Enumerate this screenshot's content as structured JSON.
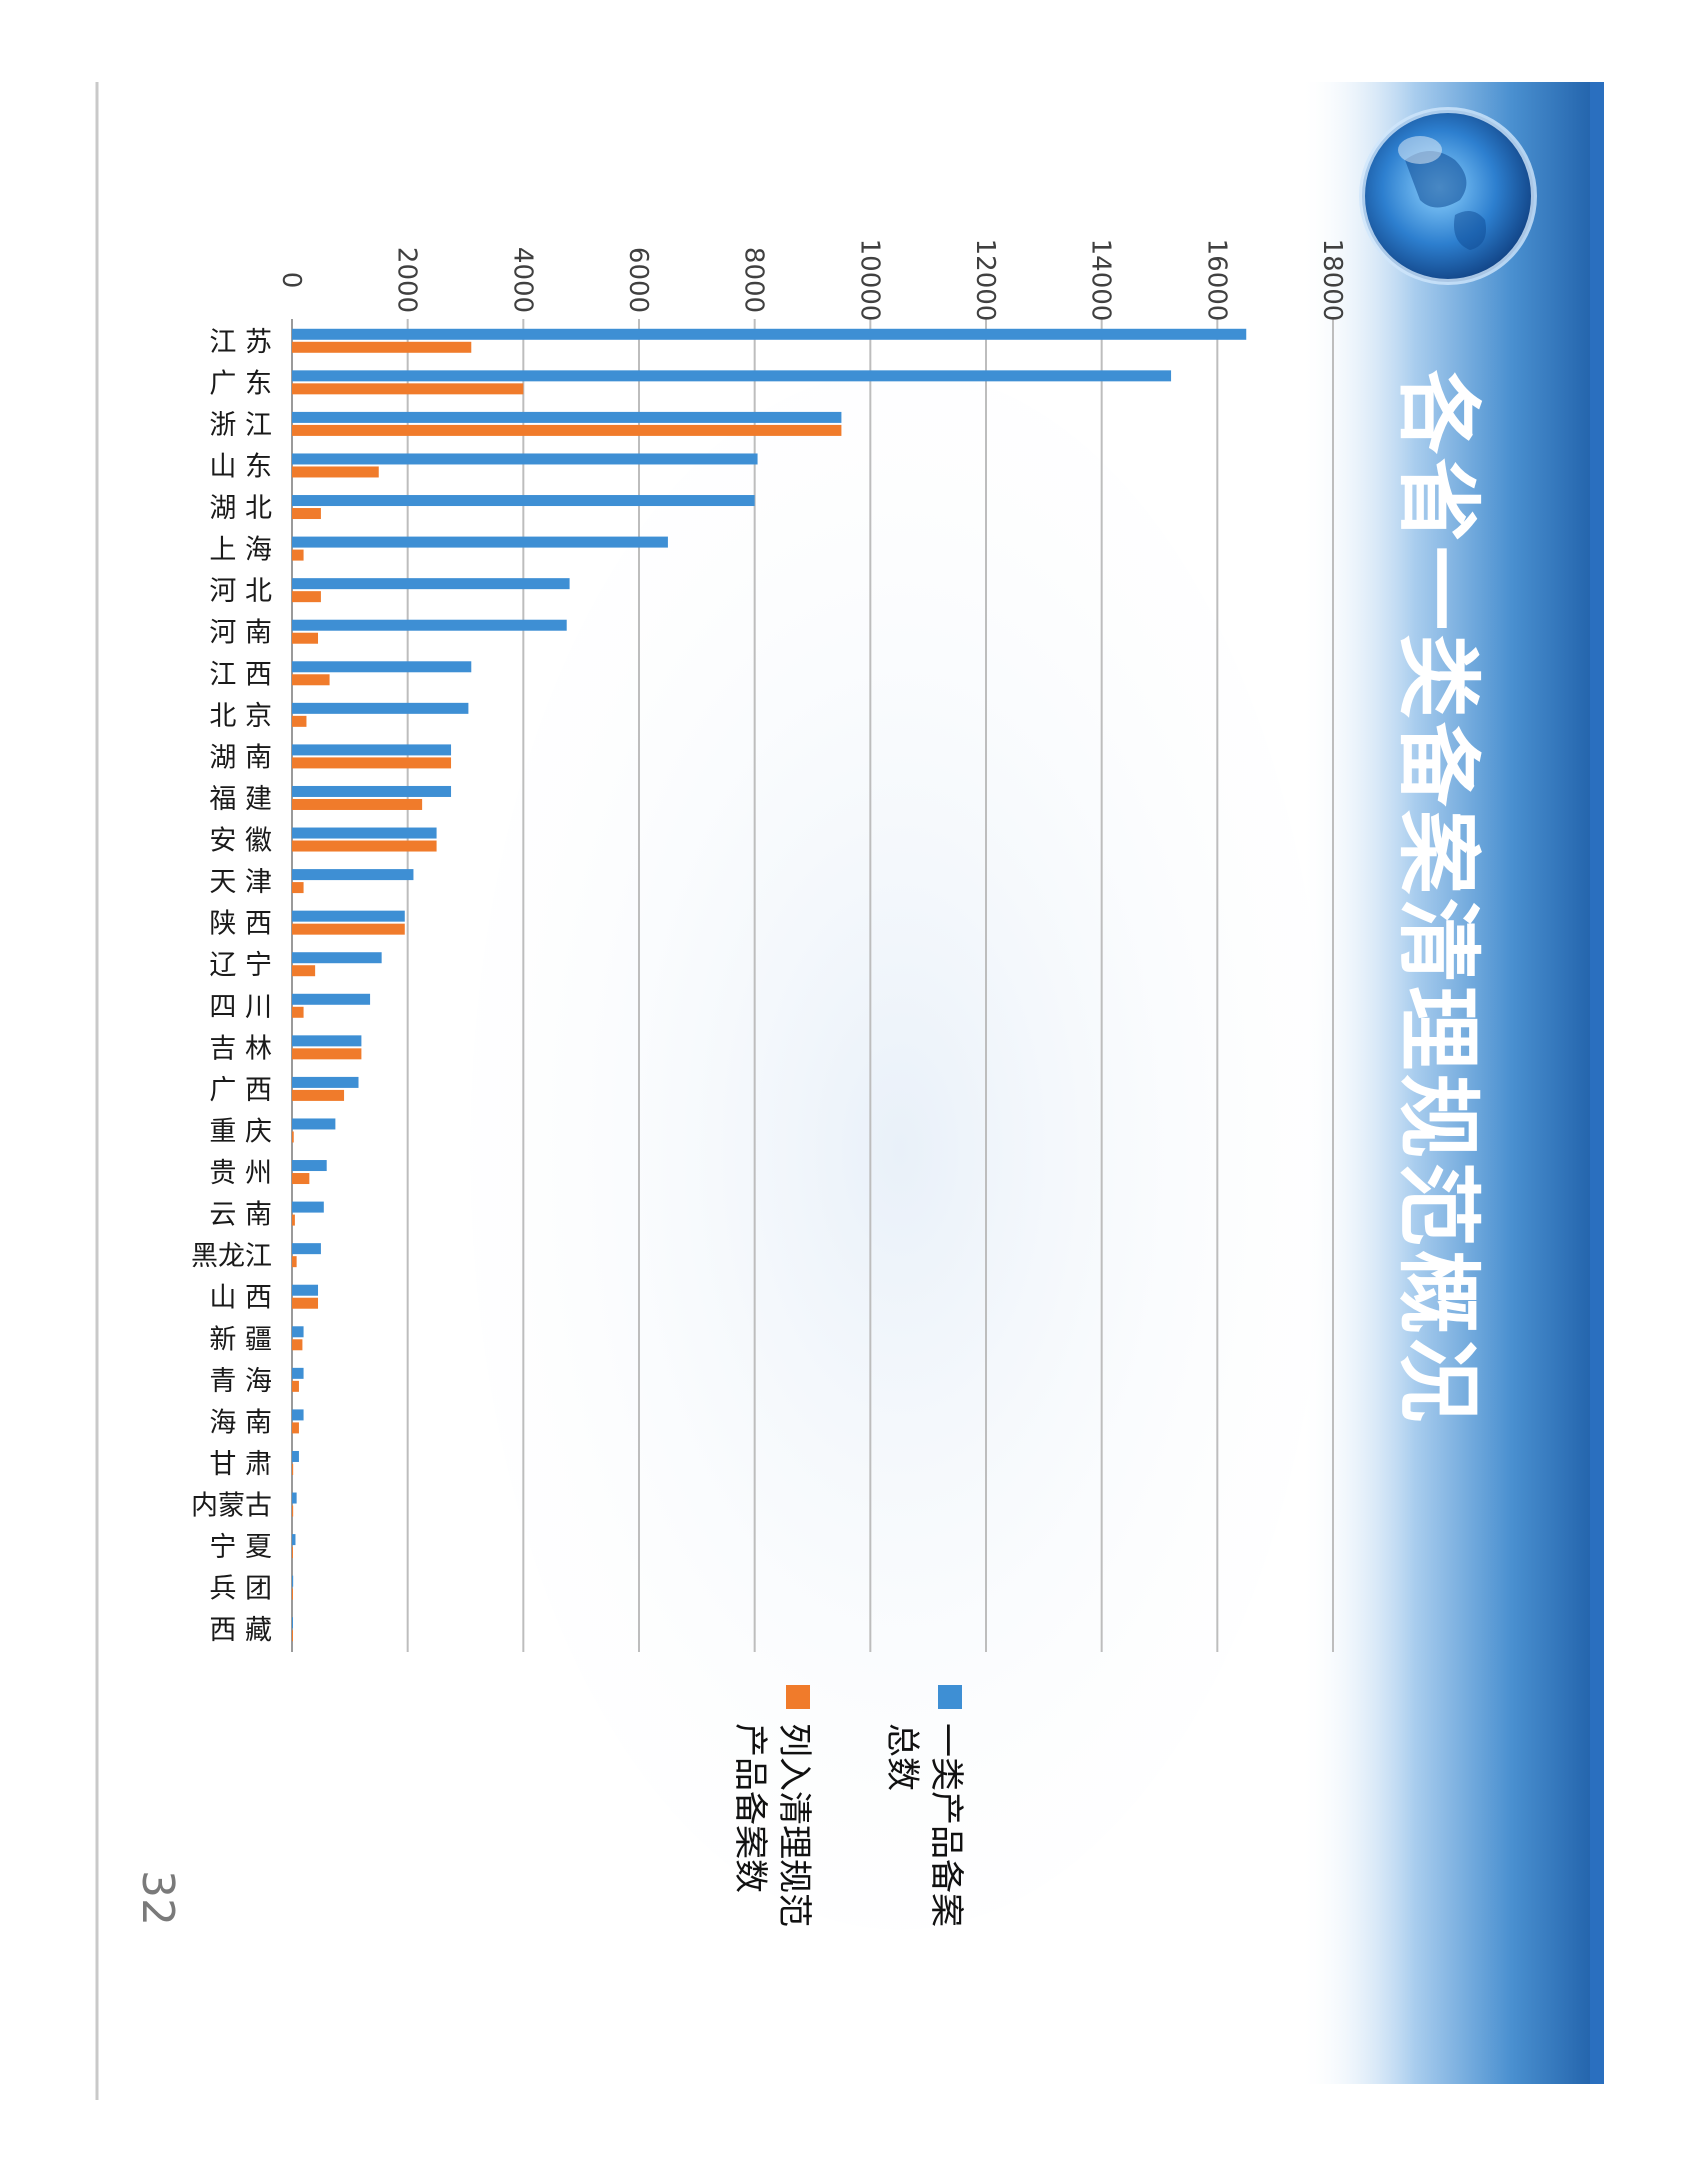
{
  "slide": {
    "title": "各省一类备案清理规范概况",
    "page_number": "32"
  },
  "colors": {
    "series_total": "#3e8fd4",
    "series_listed": "#f07b2b",
    "band_dark": "#1f5fa8",
    "band_light": "#eaf3fb",
    "axis_text": "#404040",
    "gridline": "#bdbdbd"
  },
  "icons": {
    "globe": "globe-icon"
  },
  "legend": {
    "placement": "right",
    "items": [
      {
        "key": "total",
        "label_lines": [
          "一类产品备案",
          "总数"
        ]
      },
      {
        "key": "listed",
        "label_lines": [
          "列入清理规范",
          "产品备案数"
        ]
      }
    ]
  },
  "chart_data": {
    "type": "bar",
    "orientation": "horizontal",
    "categories": [
      "江 苏",
      "广 东",
      "浙 江",
      "山 东",
      "湖 北",
      "上 海",
      "河 北",
      "河 南",
      "江 西",
      "北 京",
      "湖 南",
      "福 建",
      "安 徽",
      "天 津",
      "陕 西",
      "辽 宁",
      "四 川",
      "吉 林",
      "广 西",
      "重 庆",
      "贵 州",
      "云 南",
      "黑龙江",
      "山 西",
      "新 疆",
      "青 海",
      "海 南",
      "甘 肃",
      "内蒙古",
      "宁 夏",
      "兵 团",
      "西 藏"
    ],
    "series": [
      {
        "key": "total",
        "name": "一类产品备案总数",
        "values": [
          16500,
          15200,
          9500,
          8050,
          8000,
          6500,
          4800,
          4750,
          3100,
          3050,
          2750,
          2750,
          2500,
          2100,
          1950,
          1550,
          1350,
          1200,
          1150,
          750,
          600,
          550,
          500,
          450,
          200,
          200,
          200,
          120,
          80,
          60,
          20,
          10
        ]
      },
      {
        "key": "listed",
        "name": "列入清理规范产品备案数",
        "values": [
          3100,
          4000,
          9500,
          1500,
          500,
          200,
          500,
          450,
          650,
          250,
          2750,
          2250,
          2500,
          200,
          1950,
          400,
          200,
          1200,
          900,
          30,
          300,
          50,
          80,
          450,
          180,
          120,
          120,
          20,
          20,
          10,
          5,
          2
        ]
      }
    ],
    "axis": {
      "min": 0,
      "max": 18000,
      "step": 2000,
      "ticks": [
        "0",
        "2000",
        "4000",
        "6000",
        "8000",
        "10000",
        "12000",
        "14000",
        "16000",
        "18000"
      ]
    },
    "grid": true
  }
}
